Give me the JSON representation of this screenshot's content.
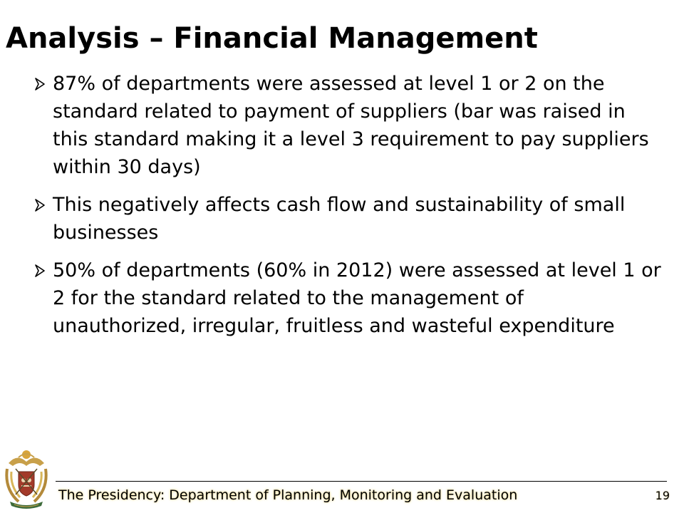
{
  "slide": {
    "title": "Analysis – Financial Management",
    "bullets": [
      {
        "text": "87% of departments were assessed at level 1 or 2 on the standard  related to payment of suppliers (bar was raised in this standard making it a level 3 requirement to pay suppliers within 30 days)"
      },
      {
        "text": "This negatively affects cash flow and sustainability of small businesses"
      },
      {
        "text": "50% of departments (60% in 2012) were assessed at level 1 or 2 for the standard related to the management of unauthorized, irregular, fruitless and wasteful expenditure"
      }
    ],
    "bullet_icon": "arrowhead-bullet-icon"
  },
  "footer": {
    "text": "The Presidency: Department of Planning, Monitoring and Evaluation",
    "page_number": "19",
    "logo_icon": "coat-of-arms-icon"
  },
  "colors": {
    "text": "#000000",
    "footer_glow": "#e8d58a",
    "logo_gold": "#c8a04a",
    "logo_red": "#a33a2a",
    "logo_green": "#3d6b3a"
  }
}
